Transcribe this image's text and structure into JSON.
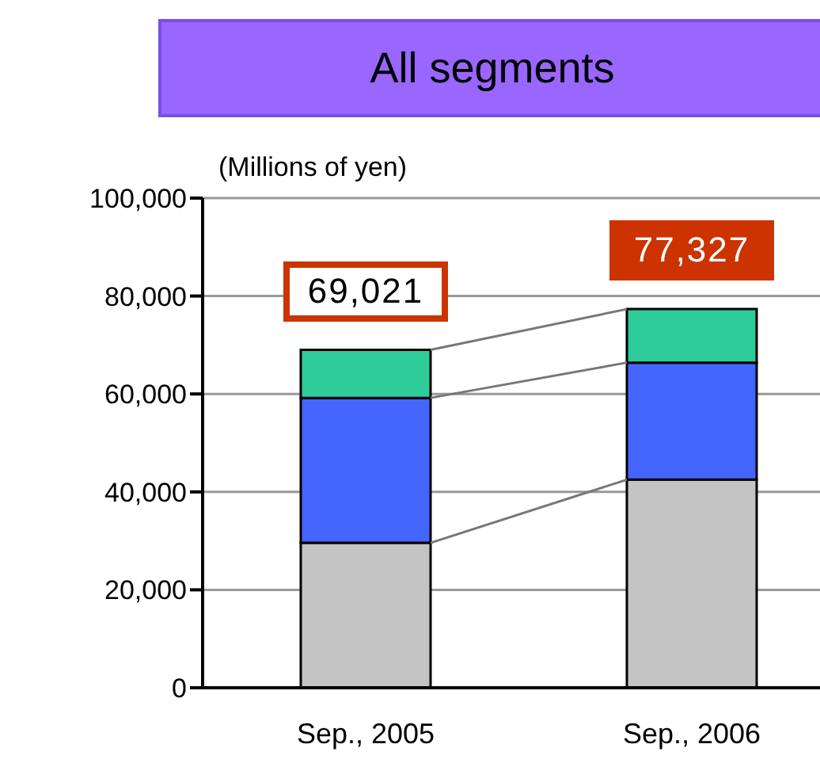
{
  "chart_data": {
    "type": "bar",
    "title": "All segments",
    "ylabel": "(Millions of yen)",
    "categories": [
      "Sep., 2005",
      "Sep., 2006"
    ],
    "stacked": true,
    "series": [
      {
        "color": "#c4c4c4",
        "values": [
          29600,
          42500
        ]
      },
      {
        "color": "#4466ff",
        "values": [
          29600,
          23900
        ]
      },
      {
        "color": "#2ecc99",
        "values": [
          9821,
          10927
        ]
      }
    ],
    "ylim": [
      0,
      100000
    ],
    "yticks": [
      0,
      {
        "value": 20000,
        "label": "20,000"
      },
      {
        "value": 40000,
        "label": "40,000"
      },
      {
        "value": 60000,
        "label": "60,000"
      },
      {
        "value": 80000,
        "label": "80,000"
      },
      {
        "value": 100000,
        "label": "100,000"
      }
    ],
    "grid": "y",
    "totals": [
      "69,021",
      "77,327"
    ]
  }
}
